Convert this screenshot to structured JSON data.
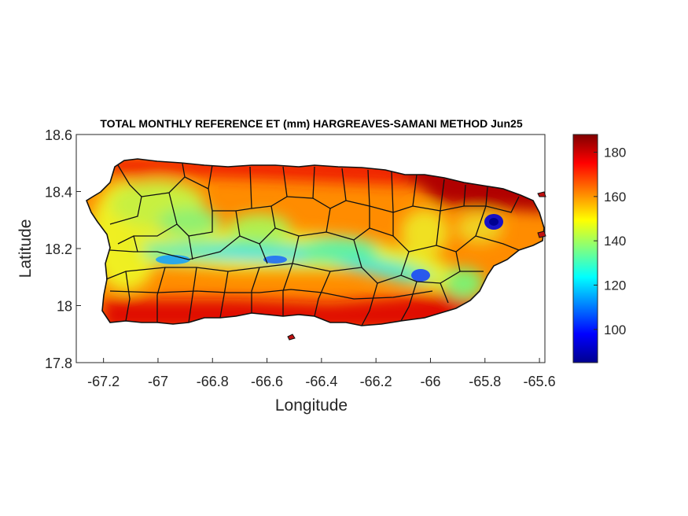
{
  "map": {
    "title": "TOTAL MONTHLY REFERENCE ET (mm) HARGREAVES-SAMANI METHOD Jun25",
    "xlabel": "Longitude",
    "ylabel": "Latitude",
    "x_ticks": [
      "-67.2",
      "-67",
      "-66.8",
      "-66.6",
      "-66.4",
      "-66.2",
      "-66",
      "-65.8",
      "-65.6"
    ],
    "x_tick_values": [
      -67.2,
      -67.0,
      -66.8,
      -66.6,
      -66.4,
      -66.2,
      -66.0,
      -65.8,
      -65.6
    ],
    "y_ticks": [
      "18.6",
      "18.4",
      "18.2",
      "18",
      "17.8"
    ],
    "y_tick_values": [
      18.6,
      18.4,
      18.2,
      18.0,
      17.8
    ],
    "xlim": [
      -67.3,
      -65.58
    ],
    "ylim": [
      17.8,
      18.6
    ],
    "colormap": "jet",
    "colorbar": {
      "ticks": [
        "180",
        "160",
        "140",
        "120",
        "100"
      ],
      "tick_values": [
        180,
        160,
        140,
        120,
        100
      ],
      "range": [
        85,
        188
      ]
    },
    "region": "Puerto Rico municipalities"
  }
}
